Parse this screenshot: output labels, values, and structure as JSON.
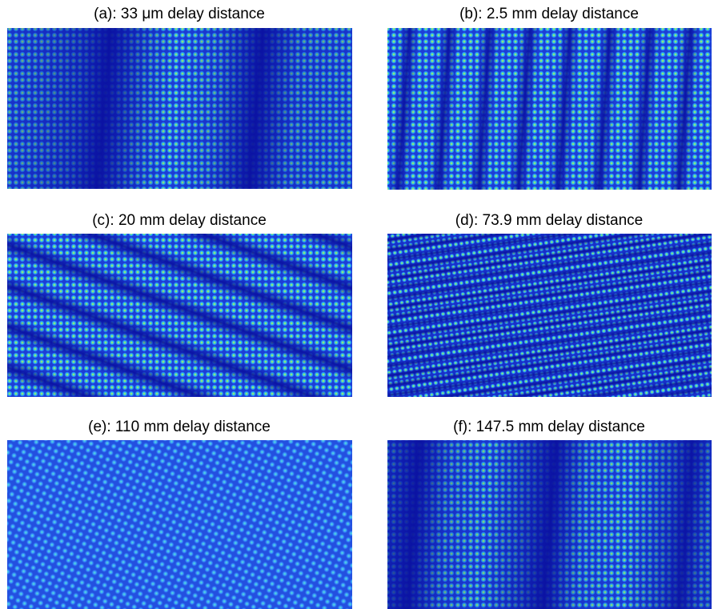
{
  "panels": [
    {
      "title": "(a): 33 μm delay distance"
    },
    {
      "title": "(b): 2.5 mm delay distance"
    },
    {
      "title": "(c): 20 mm delay distance"
    },
    {
      "title": "(d): 73.9 mm delay distance"
    },
    {
      "title": "(e): 110 mm delay distance"
    },
    {
      "title": "(f): 147.5 mm delay distance"
    }
  ]
}
